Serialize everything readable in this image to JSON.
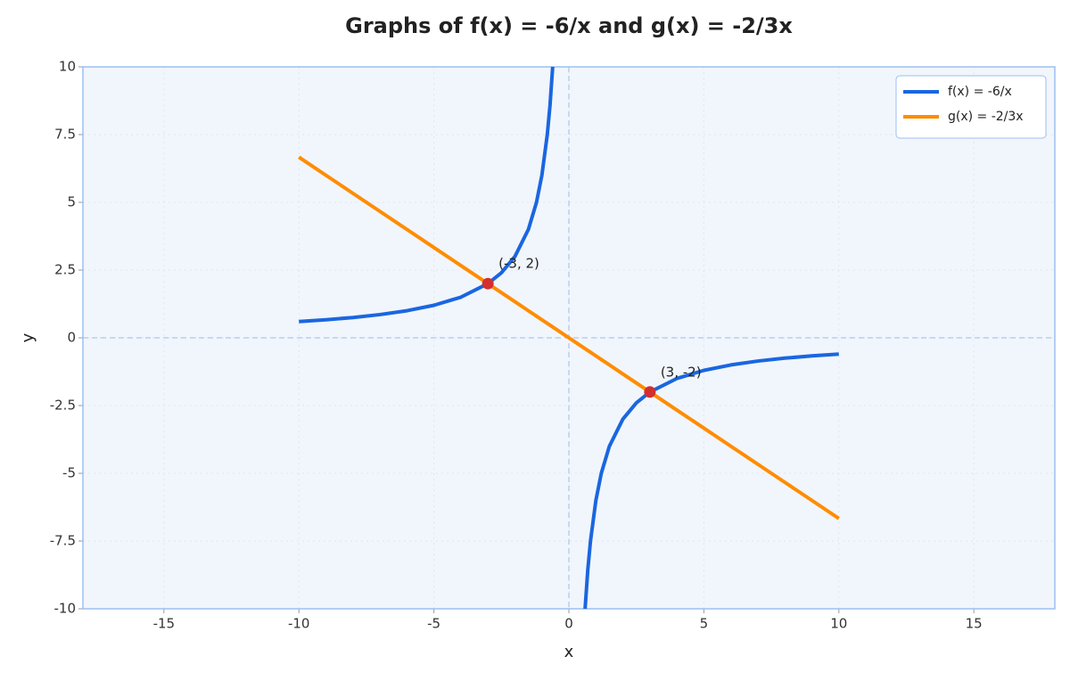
{
  "chart_data": {
    "type": "line",
    "title": "Graphs of f(x) = -6/x and g(x) = -2/3x",
    "x_label": "x",
    "y_label": "y",
    "x": [
      -10,
      -9,
      -8,
      -7,
      -6,
      -5,
      -4,
      -3,
      -2.5,
      -2,
      -1.5,
      -1.2,
      -1,
      -0.8,
      -0.7,
      -0.6,
      0,
      0.6,
      0.7,
      0.8,
      1,
      1.2,
      1.5,
      2,
      2.5,
      3,
      4,
      5,
      6,
      7,
      8,
      9,
      10
    ],
    "series": [
      {
        "name": "f(x) = -6/x",
        "color": "#1a66e0",
        "values": [
          0.6,
          0.6667,
          0.75,
          0.8571,
          1,
          1.2,
          1.5,
          2,
          2.4,
          3,
          4,
          5,
          6,
          7.5,
          8.5714,
          10,
          null,
          -10,
          -8.5714,
          -7.5,
          -6,
          -5,
          -4,
          -3,
          -2.4,
          -2,
          -1.5,
          -1.2,
          -1,
          -0.8571,
          -0.75,
          -0.6667,
          -0.6
        ]
      },
      {
        "name": "g(x) = -2/3x",
        "color": "#ff8c00",
        "values": [
          6.6667,
          6,
          5.3333,
          4.6667,
          4,
          3.3333,
          2.6667,
          2,
          1.6667,
          1.3333,
          1,
          0.8,
          0.6667,
          0.5333,
          0.4667,
          0.4,
          0,
          -0.4,
          -0.4667,
          -0.5333,
          -0.6667,
          -0.8,
          -1,
          -1.3333,
          -1.6667,
          -2,
          -2.6667,
          -3.3333,
          -4,
          -4.6667,
          -5.3333,
          -6,
          -6.6667
        ]
      }
    ],
    "points": [
      {
        "x": -3,
        "y": 2,
        "label": "(-3, 2)"
      },
      {
        "x": 3,
        "y": -2,
        "label": "(3, -2)"
      }
    ],
    "point_color": "#d32f2f",
    "xlim": [
      -18,
      18
    ],
    "ylim": [
      -10,
      10
    ],
    "xticks": [
      -15,
      -10,
      -5,
      0,
      5,
      10,
      15
    ],
    "yticks": [
      -10,
      -7.5,
      -5,
      -2.5,
      0,
      2.5,
      5,
      7.5,
      10
    ],
    "grid": true,
    "zero_lines": true,
    "legend": "upper-right"
  }
}
